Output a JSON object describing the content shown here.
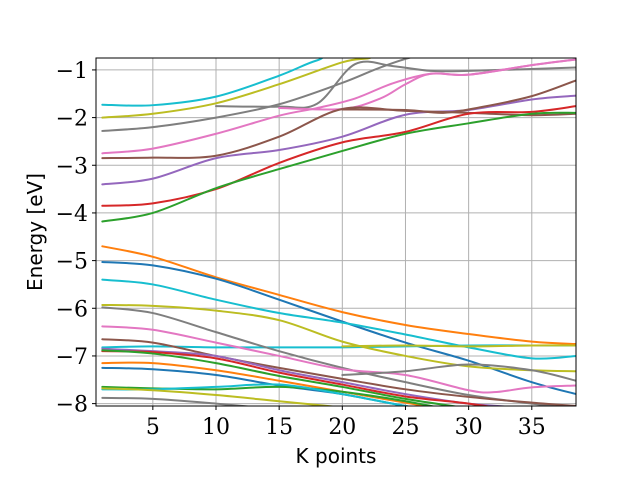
{
  "chart_data": {
    "type": "line",
    "xlabel": "K points",
    "ylabel": "Energy [eV]",
    "xlim": [
      0.5,
      38.5
    ],
    "ylim": [
      -8.05,
      -0.75
    ],
    "xticks": [
      5,
      10,
      15,
      20,
      25,
      30,
      35
    ],
    "yticks": [
      -8,
      -7,
      -6,
      -5,
      -4,
      -3,
      -2,
      -1
    ],
    "xtick_labels": [
      "5",
      "10",
      "15",
      "20",
      "25",
      "30",
      "35"
    ],
    "ytick_labels": [
      "−8",
      "−7",
      "−6",
      "−5",
      "−4",
      "−3",
      "−2",
      "−1"
    ],
    "grid": true,
    "colors": [
      "#1f77b4",
      "#ff7f0e",
      "#2ca02c",
      "#d62728",
      "#9467bd",
      "#8c564b",
      "#e377c2",
      "#7f7f7f",
      "#bcbd22",
      "#17becf"
    ],
    "series": [
      {
        "color": "#17becf",
        "x": [
          1,
          5,
          10,
          15,
          18,
          21,
          38.5
        ],
        "y": [
          -1.73,
          -1.74,
          -1.56,
          -1.12,
          -0.8,
          -0.65,
          -0.6
        ]
      },
      {
        "color": "#bcbd22",
        "x": [
          1,
          5,
          10,
          15,
          20,
          22,
          24,
          38.5
        ],
        "y": [
          -2.0,
          -1.92,
          -1.7,
          -1.3,
          -0.84,
          -0.76,
          -0.7,
          -0.55
        ]
      },
      {
        "color": "#7f7f7f",
        "x": [
          1,
          5,
          10,
          15,
          20,
          23,
          26,
          30,
          38.5
        ],
        "y": [
          -2.28,
          -2.2,
          -2.0,
          -1.72,
          -1.27,
          -0.95,
          -0.7,
          -0.56,
          -0.45
        ]
      },
      {
        "color": "#7f7f7f",
        "x": [
          10,
          15,
          18,
          21,
          24,
          27,
          30,
          38.5
        ],
        "y": [
          -1.76,
          -1.77,
          -1.71,
          -0.88,
          -0.92,
          -1.02,
          -1.02,
          -0.95
        ]
      },
      {
        "color": "#e377c2",
        "x": [
          1,
          5,
          10,
          15,
          18,
          21,
          24,
          27,
          30,
          35,
          38.5
        ],
        "y": [
          -2.75,
          -2.65,
          -2.34,
          -1.96,
          -1.8,
          -1.6,
          -1.28,
          -1.08,
          -1.1,
          -0.9,
          -0.78
        ]
      },
      {
        "color": "#e377c2",
        "x": [
          15,
          20,
          23,
          25,
          27,
          30,
          35,
          38.5
        ],
        "y": [
          -1.8,
          -1.82,
          -1.6,
          -1.3,
          -1.08,
          -1.1,
          -0.9,
          -0.78
        ]
      },
      {
        "color": "#9467bd",
        "x": [
          1,
          5,
          10,
          15,
          20,
          25,
          30,
          35,
          38.5
        ],
        "y": [
          -3.4,
          -3.28,
          -2.85,
          -2.68,
          -2.4,
          -1.94,
          -1.84,
          -1.62,
          -1.54
        ]
      },
      {
        "color": "#8c564b",
        "x": [
          1,
          5,
          10,
          15,
          20,
          25,
          30,
          35,
          38.5
        ],
        "y": [
          -2.85,
          -2.84,
          -2.8,
          -2.4,
          -1.82,
          -1.86,
          -1.9,
          -1.95,
          -1.92
        ]
      },
      {
        "color": "#8c564b",
        "x": [
          20,
          25,
          28,
          31,
          35,
          38.5
        ],
        "y": [
          -1.83,
          -1.84,
          -1.9,
          -1.78,
          -1.55,
          -1.22
        ]
      },
      {
        "color": "#d62728",
        "x": [
          1,
          5,
          10,
          15,
          20,
          25,
          30,
          35,
          38.5
        ],
        "y": [
          -3.85,
          -3.8,
          -3.5,
          -2.95,
          -2.52,
          -2.3,
          -1.92,
          -1.88,
          -1.76
        ]
      },
      {
        "color": "#2ca02c",
        "x": [
          1,
          5,
          10,
          15,
          20,
          25,
          30,
          35,
          38.5
        ],
        "y": [
          -4.18,
          -4.0,
          -3.48,
          -3.08,
          -2.7,
          -2.34,
          -2.12,
          -1.92,
          -1.9
        ]
      },
      {
        "color": "#ff7f0e",
        "x": [
          1,
          5,
          10,
          15,
          20,
          25,
          30,
          35,
          38.5
        ],
        "y": [
          -4.7,
          -4.92,
          -5.35,
          -5.72,
          -6.08,
          -6.35,
          -6.54,
          -6.7,
          -6.75
        ]
      },
      {
        "color": "#1f77b4",
        "x": [
          1,
          5,
          10,
          15,
          20,
          25,
          30,
          35,
          38.5
        ],
        "y": [
          -5.03,
          -5.1,
          -5.38,
          -5.82,
          -6.28,
          -6.72,
          -7.1,
          -7.55,
          -7.8
        ]
      },
      {
        "color": "#17becf",
        "x": [
          1,
          5,
          10,
          15,
          20,
          25,
          30,
          35,
          38.5
        ],
        "y": [
          -5.4,
          -5.5,
          -5.82,
          -6.1,
          -6.3,
          -6.55,
          -6.82,
          -7.05,
          -7.0
        ]
      },
      {
        "color": "#17becf",
        "x": [
          1,
          5,
          10,
          15,
          20,
          25,
          30,
          35,
          38.5
        ],
        "y": [
          -6.82,
          -6.8,
          -6.82,
          -6.82,
          -6.82,
          -6.8,
          -6.78,
          -6.78,
          -6.78
        ]
      },
      {
        "color": "#bcbd22",
        "x": [
          1,
          5,
          10,
          15,
          20,
          25,
          30,
          35,
          38.5
        ],
        "y": [
          -5.93,
          -5.95,
          -6.05,
          -6.25,
          -6.7,
          -7.0,
          -7.22,
          -7.3,
          -7.32
        ]
      },
      {
        "color": "#bcbd22",
        "x": [
          20,
          25,
          30,
          35,
          38.5
        ],
        "y": [
          -6.8,
          -6.78,
          -6.8,
          -6.78,
          -6.78
        ]
      },
      {
        "color": "#7f7f7f",
        "x": [
          1,
          5,
          10,
          15,
          20,
          25,
          30,
          35,
          38.5
        ],
        "y": [
          -5.98,
          -6.1,
          -6.5,
          -6.9,
          -7.25,
          -7.55,
          -7.82,
          -8.0,
          -8.1
        ]
      },
      {
        "color": "#e377c2",
        "x": [
          1,
          5,
          10,
          15,
          20,
          25,
          30,
          32,
          35,
          38.5
        ],
        "y": [
          -6.38,
          -6.45,
          -6.72,
          -7.0,
          -7.28,
          -7.4,
          -7.72,
          -7.76,
          -7.66,
          -7.62
        ]
      },
      {
        "color": "#8c564b",
        "x": [
          1,
          5,
          10,
          15,
          20,
          25,
          30,
          35,
          38.5
        ],
        "y": [
          -6.65,
          -6.72,
          -7.0,
          -7.25,
          -7.48,
          -7.7,
          -7.86,
          -7.98,
          -8.05
        ]
      },
      {
        "color": "#9467bd",
        "x": [
          1,
          5,
          10,
          15,
          20,
          25,
          30,
          35,
          38.5
        ],
        "y": [
          -6.85,
          -6.9,
          -7.0,
          -7.3,
          -7.55,
          -7.8,
          -8.0,
          -8.1,
          -8.2
        ]
      },
      {
        "color": "#d62728",
        "x": [
          1,
          5,
          10,
          15,
          20,
          25,
          30,
          35,
          38.5
        ],
        "y": [
          -6.9,
          -6.92,
          -7.05,
          -7.35,
          -7.6,
          -7.85,
          -8.0,
          -8.2,
          -8.3
        ]
      },
      {
        "color": "#2ca02c",
        "x": [
          1,
          5,
          10,
          15,
          20,
          25,
          30,
          35,
          38.5
        ],
        "y": [
          -6.88,
          -6.95,
          -7.15,
          -7.42,
          -7.65,
          -7.9,
          -8.1,
          -8.3,
          -8.4
        ]
      },
      {
        "color": "#7f7f7f",
        "x": [
          20,
          25,
          30,
          35,
          38.5
        ],
        "y": [
          -7.4,
          -7.32,
          -7.18,
          -7.3,
          -7.52
        ]
      },
      {
        "color": "#ff7f0e",
        "x": [
          1,
          5,
          10,
          15,
          20,
          25,
          30,
          35,
          38.5
        ],
        "y": [
          -7.15,
          -7.15,
          -7.3,
          -7.52,
          -7.75,
          -7.98,
          -8.2,
          -8.4,
          -8.5
        ]
      },
      {
        "color": "#1f77b4",
        "x": [
          1,
          5,
          10,
          15,
          20,
          25,
          30,
          35,
          38.5
        ],
        "y": [
          -7.25,
          -7.28,
          -7.4,
          -7.62,
          -7.8,
          -8.05,
          -8.25,
          -8.45,
          -8.55
        ]
      },
      {
        "color": "#2ca02c",
        "x": [
          1,
          5,
          10,
          15,
          20,
          25,
          30,
          35,
          38.5
        ],
        "y": [
          -7.65,
          -7.68,
          -7.7,
          -7.65,
          -7.75,
          -7.95,
          -8.2,
          -8.4,
          -8.5
        ]
      },
      {
        "color": "#17becf",
        "x": [
          1,
          5,
          10,
          15,
          20,
          25,
          30,
          35,
          38.5
        ],
        "y": [
          -7.7,
          -7.7,
          -7.65,
          -7.6,
          -7.8,
          -8.05,
          -8.25,
          -8.45,
          -8.55
        ]
      },
      {
        "color": "#bcbd22",
        "x": [
          1,
          5,
          10,
          15,
          20,
          25,
          30,
          35,
          38.5
        ],
        "y": [
          -7.68,
          -7.72,
          -7.82,
          -7.95,
          -8.08,
          -8.2,
          -8.3,
          -8.4,
          -8.5
        ]
      },
      {
        "color": "#7f7f7f",
        "x": [
          1,
          5,
          10,
          15,
          20,
          25,
          30,
          35,
          38.5
        ],
        "y": [
          -7.88,
          -7.9,
          -8.0,
          -8.12,
          -8.25,
          -8.35,
          -8.45,
          -8.55,
          -8.65
        ]
      }
    ]
  }
}
